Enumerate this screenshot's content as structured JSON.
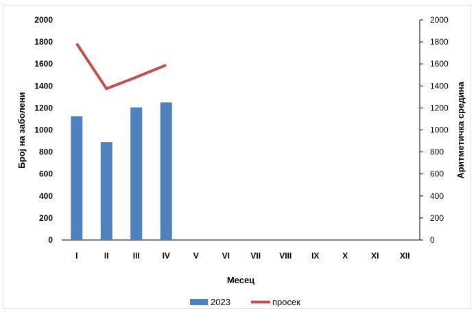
{
  "chart_data": {
    "type": "bar",
    "categories": [
      "I",
      "II",
      "III",
      "IV",
      "V",
      "VI",
      "VII",
      "VIII",
      "IX",
      "X",
      "XI",
      "XII"
    ],
    "series": [
      {
        "name": "2023",
        "type": "bar",
        "axis": "left",
        "color": "#4f81bd",
        "values": [
          1125,
          890,
          1205,
          1250,
          null,
          null,
          null,
          null,
          null,
          null,
          null,
          null
        ]
      },
      {
        "name": "просек",
        "type": "line",
        "axis": "right",
        "color": "#c0504d",
        "values": [
          1785,
          1375,
          1480,
          1590,
          null,
          null,
          null,
          null,
          null,
          null,
          null,
          null
        ]
      }
    ],
    "xlabel": "Месец",
    "ylabel": "Број на заболени",
    "y2label": "Аритметичка средина",
    "ylim": [
      0,
      2000
    ],
    "y2lim": [
      0,
      2000
    ],
    "yticks": [
      "0",
      "200",
      "400",
      "600",
      "800",
      "1000",
      "1200",
      "1400",
      "1600",
      "1800",
      "2000"
    ],
    "y2ticks": [
      "0",
      "200",
      "400",
      "600",
      "800",
      "1000",
      "1200",
      "1400",
      "1600",
      "1800",
      "2000"
    ],
    "grid": false,
    "legend_position": "bottom-center"
  }
}
